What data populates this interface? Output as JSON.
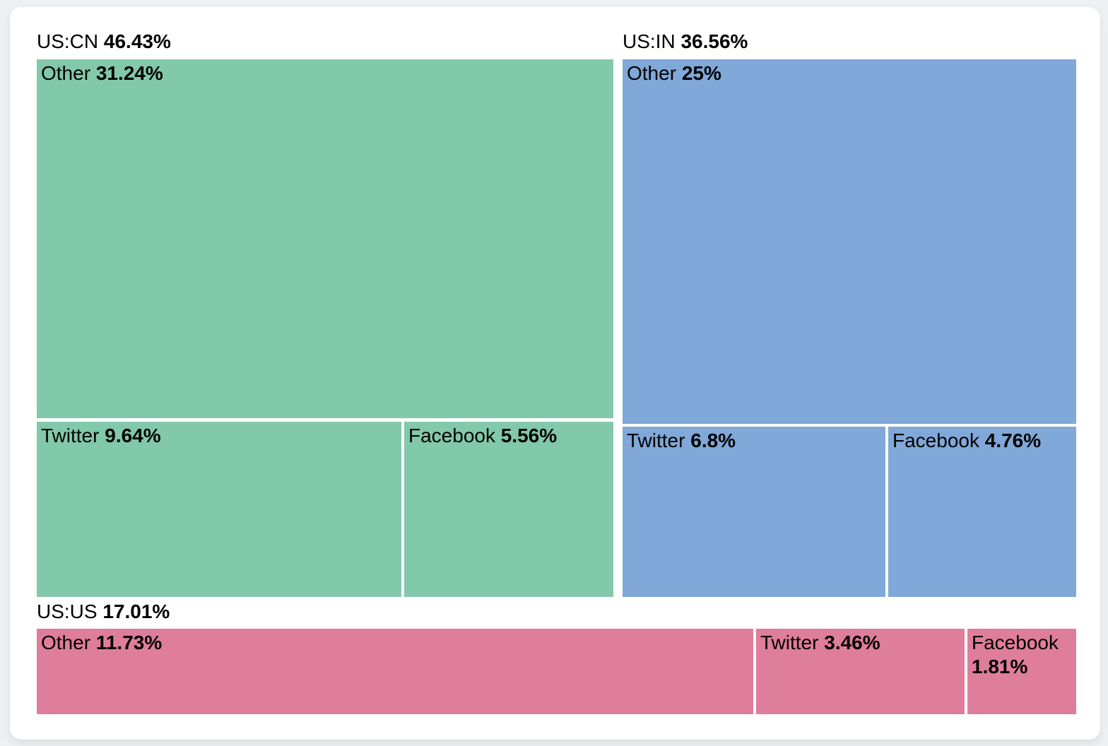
{
  "chart_data": {
    "type": "treemap",
    "title": "",
    "unit": "%",
    "legend": "none",
    "text_color": "#000000",
    "background_color": "#eef0f3",
    "card_color": "#ffffff",
    "groups": [
      {
        "label": "US:CN",
        "value": 46.43,
        "value_display": "46.43%",
        "color": "#82c8ab",
        "children": [
          {
            "name": "Other",
            "value": 31.24,
            "value_display": "31.24%"
          },
          {
            "name": "Twitter",
            "value": 9.64,
            "value_display": "9.64%"
          },
          {
            "name": "Facebook",
            "value": 5.56,
            "value_display": "5.56%"
          }
        ]
      },
      {
        "label": "US:IN",
        "value": 36.56,
        "value_display": "36.56%",
        "color": "#80a8d8",
        "children": [
          {
            "name": "Other",
            "value": 25,
            "value_display": "25%"
          },
          {
            "name": "Twitter",
            "value": 6.8,
            "value_display": "6.8%"
          },
          {
            "name": "Facebook",
            "value": 4.76,
            "value_display": "4.76%"
          }
        ]
      },
      {
        "label": "US:US",
        "value": 17.01,
        "value_display": "17.01%",
        "color": "#df7d9d",
        "children": [
          {
            "name": "Other",
            "value": 11.73,
            "value_display": "11.73%"
          },
          {
            "name": "Twitter",
            "value": 3.46,
            "value_display": "3.46%"
          },
          {
            "name": "Facebook",
            "value": 1.81,
            "value_display": "1.81%"
          }
        ]
      }
    ]
  }
}
